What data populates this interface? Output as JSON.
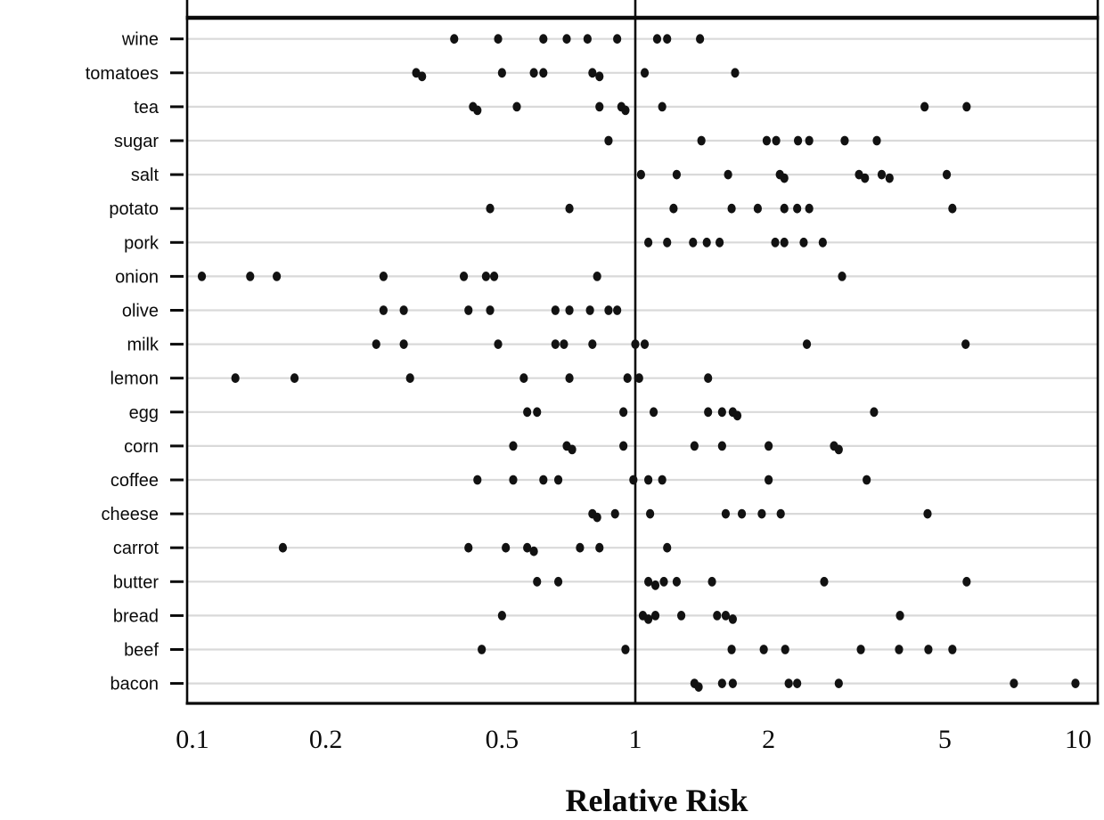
{
  "chart_data": {
    "type": "scatter",
    "title": "",
    "xlabel": "Relative Risk",
    "ylabel": "",
    "x_scale": "log",
    "xlim": [
      0.095,
      11.1
    ],
    "x_ticks": [
      0.1,
      0.2,
      0.5,
      1,
      2,
      5,
      10
    ],
    "x_tick_labels": [
      "0.1",
      "0.2",
      "0.5",
      "1",
      "2",
      "5",
      "10"
    ],
    "reference_line_x": 1,
    "grid": "horizontal-light",
    "marker": "filled-black-dot",
    "categories_top_to_bottom": [
      "wine",
      "tomatoes",
      "tea",
      "sugar",
      "salt",
      "potato",
      "pork",
      "onion",
      "olive",
      "milk",
      "lemon",
      "egg",
      "corn",
      "coffee",
      "cheese",
      "carrot",
      "butter",
      "bread",
      "beef",
      "bacon"
    ],
    "rows": [
      {
        "label": "wine",
        "values": [
          0.39,
          0.49,
          0.62,
          0.7,
          0.78,
          0.91,
          1.12,
          1.18,
          1.4
        ]
      },
      {
        "label": "tomatoes",
        "values": [
          0.32,
          0.33,
          0.5,
          0.59,
          0.62,
          0.8,
          0.83,
          1.05,
          1.68
        ]
      },
      {
        "label": "tea",
        "values": [
          0.43,
          0.44,
          0.54,
          0.83,
          0.93,
          0.95,
          1.15,
          4.5,
          5.6
        ]
      },
      {
        "label": "sugar",
        "values": [
          0.87,
          1.41,
          1.98,
          2.08,
          2.33,
          2.47,
          2.97,
          3.51
        ]
      },
      {
        "label": "salt",
        "values": [
          1.03,
          1.24,
          1.62,
          2.12,
          2.17,
          3.2,
          3.3,
          3.6,
          3.75,
          5.05
        ]
      },
      {
        "label": "potato",
        "values": [
          0.47,
          0.71,
          1.22,
          1.65,
          1.89,
          2.17,
          2.32,
          2.47,
          5.2
        ]
      },
      {
        "label": "pork",
        "values": [
          1.07,
          1.18,
          1.35,
          1.45,
          1.55,
          2.07,
          2.17,
          2.4,
          2.65
        ]
      },
      {
        "label": "onion",
        "values": [
          0.105,
          0.135,
          0.155,
          0.27,
          0.41,
          0.46,
          0.48,
          0.82,
          2.93
        ]
      },
      {
        "label": "olive",
        "values": [
          0.27,
          0.3,
          0.42,
          0.47,
          0.66,
          0.71,
          0.79,
          0.87,
          0.91
        ]
      },
      {
        "label": "milk",
        "values": [
          0.26,
          0.3,
          0.49,
          0.66,
          0.69,
          0.8,
          1.0,
          1.05,
          2.44,
          5.57
        ]
      },
      {
        "label": "lemon",
        "values": [
          0.125,
          0.17,
          0.31,
          0.56,
          0.71,
          0.96,
          1.02,
          1.46
        ]
      },
      {
        "label": "egg",
        "values": [
          0.57,
          0.6,
          0.94,
          1.1,
          1.46,
          1.57,
          1.66,
          1.7,
          3.46
        ]
      },
      {
        "label": "corn",
        "values": [
          0.53,
          0.7,
          0.72,
          0.94,
          1.36,
          1.57,
          2.0,
          2.81,
          2.88
        ]
      },
      {
        "label": "coffee",
        "values": [
          0.44,
          0.53,
          0.62,
          0.67,
          0.99,
          1.07,
          1.15,
          2.0,
          3.33
        ]
      },
      {
        "label": "cheese",
        "values": [
          0.8,
          0.82,
          0.9,
          1.08,
          1.6,
          1.74,
          1.93,
          2.13,
          4.57
        ]
      },
      {
        "label": "carrot",
        "values": [
          0.16,
          0.42,
          0.51,
          0.57,
          0.59,
          0.75,
          0.83,
          1.18
        ]
      },
      {
        "label": "butter",
        "values": [
          0.6,
          0.67,
          1.07,
          1.11,
          1.16,
          1.24,
          1.49,
          2.67,
          5.6
        ]
      },
      {
        "label": "bread",
        "values": [
          0.5,
          1.04,
          1.07,
          1.11,
          1.27,
          1.53,
          1.6,
          1.66,
          3.96
        ]
      },
      {
        "label": "beef",
        "values": [
          0.45,
          0.95,
          1.65,
          1.95,
          2.18,
          3.23,
          3.94,
          4.59,
          5.2
        ]
      },
      {
        "label": "bacon",
        "values": [
          1.36,
          1.39,
          1.57,
          1.66,
          2.22,
          2.32,
          2.88,
          7.16,
          9.86
        ]
      }
    ],
    "colors": {
      "dot": "#121212",
      "frame": "#0a0a0a",
      "reference_line": "#0a0a0a",
      "gridline": "#d9d9d9",
      "background": "#ffffff"
    }
  }
}
